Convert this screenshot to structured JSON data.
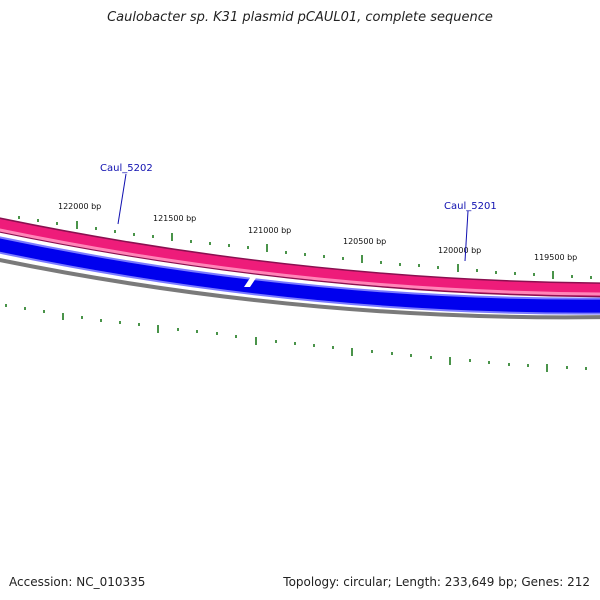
{
  "title": "Caulobacter sp. K31 plasmid pCAUL01, complete sequence",
  "footer": {
    "accession": "Accession: NC_010335",
    "summary": "Topology: circular; Length: 233,649 bp; Genes: 212"
  },
  "colors": {
    "background": "#ffffff",
    "gene_forward": "#ee1c7a",
    "gene_forward_light": "#ffb6d5",
    "gene_reverse": "#0000ee",
    "backbone": "#7a7a7a",
    "tick": "#1c7a1c",
    "gene_label": "#1010b0"
  },
  "ruler_labels": [
    "122000 bp",
    "121500 bp",
    "121000 bp",
    "120500 bp",
    "120000 bp",
    "119500 bp"
  ],
  "genes": [
    {
      "locus": "Caul_5202",
      "strand": "forward"
    },
    {
      "locus": "Caul_5201",
      "strand": "reverse"
    }
  ]
}
